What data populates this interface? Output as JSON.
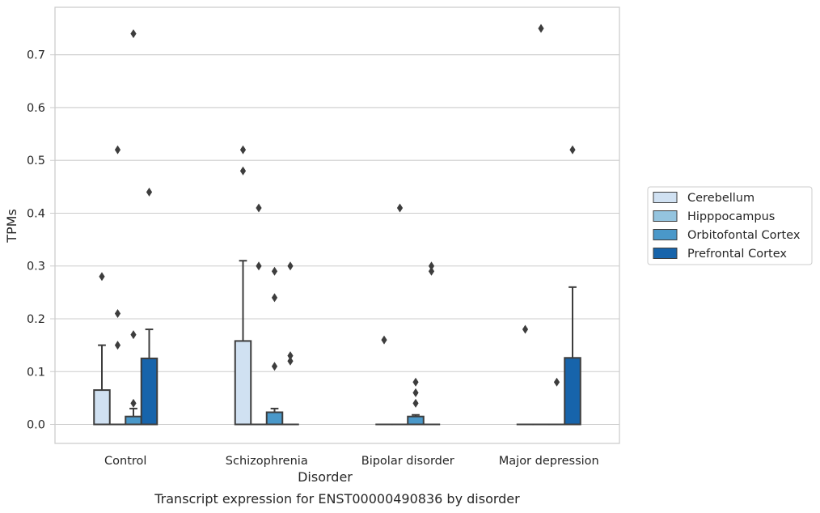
{
  "chart_data": {
    "type": "box",
    "xlabel": "Disorder",
    "ylabel": "TPMs",
    "caption": "Transcript expression for ENST00000490836 by disorder",
    "categories": [
      "Control",
      "Schizophrenia",
      "Bipolar disorder",
      "Major depression"
    ],
    "ylim": [
      -0.036,
      0.79
    ],
    "yticks": [
      0.0,
      0.1,
      0.2,
      0.3,
      0.4,
      0.5,
      0.6,
      0.7
    ],
    "ytick_labels": [
      "0.0",
      "0.1",
      "0.2",
      "0.3",
      "0.4",
      "0.5",
      "0.6",
      "0.7"
    ],
    "grid": true,
    "legend_position": "right",
    "series": [
      {
        "name": "Cerebellum",
        "color": "#d0e1f2",
        "boxes": [
          {
            "q1": 0.0,
            "median": 0.0,
            "q3": 0.065,
            "whislo": 0.0,
            "whishi": 0.15,
            "fliers": [
              0.28
            ]
          },
          {
            "q1": 0.0,
            "median": 0.0,
            "q3": 0.158,
            "whislo": 0.0,
            "whishi": 0.31,
            "fliers": [
              0.52,
              0.48
            ]
          },
          {
            "q1": 0.0,
            "median": 0.0,
            "q3": 0.0,
            "whislo": 0.0,
            "whishi": 0.0,
            "fliers": [
              0.16
            ]
          },
          {
            "q1": 0.0,
            "median": 0.0,
            "q3": 0.0,
            "whislo": 0.0,
            "whishi": 0.0,
            "fliers": [
              0.18
            ]
          }
        ]
      },
      {
        "name": "Hipppocampus",
        "color": "#94c4df",
        "boxes": [
          {
            "q1": 0.0,
            "median": 0.0,
            "q3": 0.0,
            "whislo": 0.0,
            "whishi": 0.0,
            "fliers": [
              0.52,
              0.21,
              0.15
            ]
          },
          {
            "q1": 0.0,
            "median": 0.0,
            "q3": 0.0,
            "whislo": 0.0,
            "whishi": 0.0,
            "fliers": [
              0.41,
              0.3
            ]
          },
          {
            "q1": 0.0,
            "median": 0.0,
            "q3": 0.0,
            "whislo": 0.0,
            "whishi": 0.0,
            "fliers": [
              0.41
            ]
          },
          {
            "q1": 0.0,
            "median": 0.0,
            "q3": 0.0,
            "whislo": 0.0,
            "whishi": 0.0,
            "fliers": [
              0.75
            ]
          }
        ]
      },
      {
        "name": "Orbitofontal Cortex",
        "color": "#4a98c9",
        "boxes": [
          {
            "q1": 0.0,
            "median": 0.0,
            "q3": 0.015,
            "whislo": 0.0,
            "whishi": 0.03,
            "fliers": [
              0.74,
              0.17,
              0.04
            ]
          },
          {
            "q1": 0.0,
            "median": 0.0,
            "q3": 0.023,
            "whislo": 0.0,
            "whishi": 0.03,
            "fliers": [
              0.29,
              0.24,
              0.11
            ]
          },
          {
            "q1": 0.0,
            "median": 0.0,
            "q3": 0.015,
            "whislo": 0.0,
            "whishi": 0.018,
            "fliers": [
              0.08,
              0.06,
              0.04
            ]
          },
          {
            "q1": 0.0,
            "median": 0.0,
            "q3": 0.0,
            "whislo": 0.0,
            "whishi": 0.0,
            "fliers": [
              0.08
            ]
          }
        ]
      },
      {
        "name": "Prefrontal Cortex",
        "color": "#1764ab",
        "boxes": [
          {
            "q1": 0.0,
            "median": 0.0,
            "q3": 0.125,
            "whislo": 0.0,
            "whishi": 0.18,
            "fliers": [
              0.44
            ]
          },
          {
            "q1": 0.0,
            "median": 0.0,
            "q3": 0.0,
            "whislo": 0.0,
            "whishi": 0.0,
            "fliers": [
              0.3,
              0.13,
              0.12
            ]
          },
          {
            "q1": 0.0,
            "median": 0.0,
            "q3": 0.0,
            "whislo": 0.0,
            "whishi": 0.0,
            "fliers": [
              0.3,
              0.29
            ]
          },
          {
            "q1": 0.0,
            "median": 0.0,
            "q3": 0.126,
            "whislo": 0.0,
            "whishi": 0.26,
            "fliers": [
              0.52
            ]
          }
        ]
      }
    ]
  }
}
